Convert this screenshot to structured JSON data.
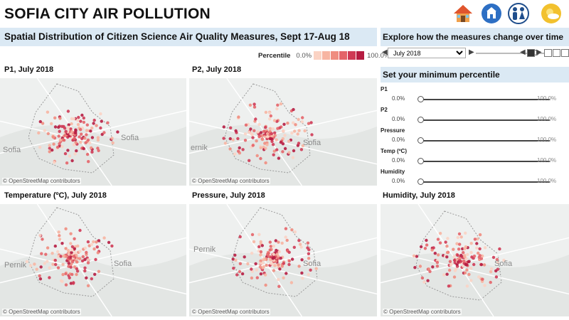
{
  "header": {
    "title": "SOFIA CITY AIR POLLUTION",
    "icons": [
      "home-icon",
      "organization-icon",
      "people-icon",
      "weather-icon"
    ]
  },
  "main": {
    "banner": "Spatial Distribution of Citizen Science Air Quality Measures, Sept 17-Aug 18",
    "legend": {
      "title": "Percentile",
      "min": "0.0%",
      "max": "100.0%",
      "colors": [
        "#fbd3c4",
        "#f7b5a2",
        "#ef8d80",
        "#e46469",
        "#cf3a55",
        "#b61d42"
      ]
    }
  },
  "maps": [
    {
      "id": "p1",
      "title": "P1, July 2018",
      "attribution": "© OpenStreetMap contributors",
      "cities": [
        "Sofia",
        "Sofia"
      ]
    },
    {
      "id": "p2",
      "title": "P2,  July 2018",
      "attribution": "© OpenStreetMap contributors",
      "cities": [
        "ernik",
        "Sofia"
      ]
    },
    {
      "id": "temp",
      "title": "Temperature (ºC),  July 2018",
      "attribution": "© OpenStreetMap contributors",
      "cities": [
        "Pernik",
        "Sofia"
      ]
    },
    {
      "id": "press",
      "title": "Pressure,  July 2018",
      "attribution": "© OpenStreetMap contributors",
      "cities": [
        "Pernik",
        "Sofia"
      ]
    },
    {
      "id": "humid",
      "title": "Humidity,  July 2018",
      "attribution": "© OpenStreetMap contributors",
      "cities": [
        "Sofia"
      ]
    }
  ],
  "side": {
    "explore_banner": "Explore how the measures change over time",
    "date_value": "July 2018",
    "date_progress_pct": 85,
    "filter_banner": "Set your minimum percentile",
    "filters": [
      {
        "label": "P1",
        "min": "0.0%",
        "max": "100.0%"
      },
      {
        "label": "P2",
        "min": "0.0%",
        "max": "100.0%"
      },
      {
        "label": "Pressure",
        "min": "0.0%",
        "max": "100.0%"
      },
      {
        "label": "Temp (ºC)",
        "min": "0.0%",
        "max": "100.0%"
      },
      {
        "label": "Humidity",
        "min": "0.0%",
        "max": "100.0%"
      }
    ]
  }
}
